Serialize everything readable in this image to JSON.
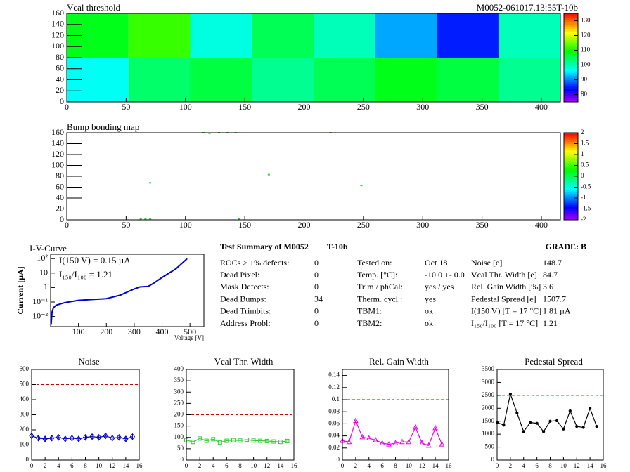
{
  "chart_data": [
    {
      "type": "heatmap",
      "title": "Vcal threshold",
      "annotation": "M0052-061017.13:55T-10b",
      "x_edges": [
        0,
        52,
        104,
        156,
        208,
        260,
        312,
        364,
        416
      ],
      "y_edges": [
        0,
        80,
        160
      ],
      "z": [
        [
          97,
          104,
          106,
          102,
          105,
          108,
          106,
          102
        ],
        [
          108,
          112,
          98,
          105,
          100,
          92,
          85,
          100
        ]
      ],
      "xlim": [
        0,
        416
      ],
      "ylim": [
        0,
        160
      ],
      "xticks": [
        0,
        50,
        100,
        150,
        200,
        250,
        300,
        350,
        400
      ],
      "yticks": [
        0,
        20,
        40,
        60,
        80,
        100,
        120,
        140,
        160
      ],
      "zlim": [
        75,
        135
      ],
      "zticks": [
        80,
        90,
        100,
        110,
        120,
        130
      ]
    },
    {
      "type": "scatter",
      "title": "Bump bonding map",
      "color": "#33cc33",
      "x": [
        115,
        120,
        128,
        135,
        142,
        222,
        70,
        170,
        248,
        62,
        66,
        70,
        145
      ],
      "values": [
        160,
        159,
        160,
        160,
        160,
        160,
        68,
        83,
        63,
        2,
        2,
        2,
        2
      ],
      "xlim": [
        0,
        416
      ],
      "ylim": [
        0,
        160
      ],
      "xticks": [
        0,
        50,
        100,
        150,
        200,
        250,
        300,
        350,
        400
      ],
      "yticks": [
        0,
        20,
        40,
        60,
        80,
        100,
        120,
        140,
        160
      ],
      "zlim": [
        -2,
        2
      ],
      "zticks": [
        -2,
        -1.5,
        -1,
        -0.5,
        0,
        0.5,
        1,
        1.5,
        2
      ]
    },
    {
      "type": "line",
      "title": "I-V-Curve",
      "x_label": "Voltage [V]",
      "y_label": "Current [µA]",
      "log_y": true,
      "color": "#0000cc",
      "annotations": [
        "I(150 V) = 0.15 µA",
        "I₁₅₀/I₁₀₀ =  1.21"
      ],
      "x": [
        2,
        5,
        10,
        20,
        50,
        100,
        150,
        200,
        250,
        300,
        320,
        350,
        370,
        400,
        450,
        490
      ],
      "values": [
        0.003,
        0.02,
        0.04,
        0.06,
        0.09,
        0.13,
        0.15,
        0.17,
        0.3,
        0.8,
        1.1,
        1.2,
        2,
        5,
        20,
        100
      ],
      "xlim": [
        0,
        550
      ],
      "ylim": [
        0.002,
        200
      ],
      "xticks": [
        100,
        200,
        300,
        400,
        500
      ],
      "yticks": [
        {
          "value": 0.01,
          "label": "10⁻²"
        },
        {
          "value": 0.1,
          "label": "10⁻¹"
        },
        1,
        10,
        {
          "value": 100,
          "label": "10²"
        }
      ]
    },
    {
      "type": "line",
      "title": "Noise",
      "color": "#0000cc",
      "marker": "diamond",
      "threshold": 500,
      "x": [
        0,
        1,
        2,
        3,
        4,
        5,
        6,
        7,
        8,
        9,
        10,
        11,
        12,
        13,
        14,
        15
      ],
      "values": [
        160,
        145,
        140,
        145,
        150,
        140,
        145,
        140,
        150,
        155,
        150,
        160,
        145,
        150,
        140,
        155
      ],
      "errors": [
        15,
        15,
        15,
        15,
        15,
        15,
        15,
        15,
        15,
        15,
        15,
        15,
        15,
        15,
        15,
        15
      ],
      "xlim": [
        0,
        16
      ],
      "ylim": [
        0,
        600
      ],
      "xticks": [
        0,
        2,
        4,
        6,
        8,
        10,
        12,
        14,
        16
      ],
      "yticks": [
        0,
        100,
        200,
        300,
        400,
        500,
        600
      ]
    },
    {
      "type": "line",
      "title": "Vcal Thr. Width",
      "color": "#33cc33",
      "marker": "square",
      "threshold": 200,
      "x": [
        0,
        1,
        2,
        3,
        4,
        5,
        6,
        7,
        8,
        9,
        10,
        11,
        12,
        13,
        14,
        15
      ],
      "values": [
        88,
        80,
        95,
        85,
        92,
        78,
        85,
        88,
        86,
        90,
        86,
        85,
        84,
        82,
        80,
        84
      ],
      "xlim": [
        0,
        16
      ],
      "ylim": [
        0,
        400
      ],
      "xticks": [
        0,
        2,
        4,
        6,
        8,
        10,
        12,
        14,
        16
      ],
      "yticks": [
        0,
        50,
        100,
        150,
        200,
        250,
        300,
        350,
        400
      ]
    },
    {
      "type": "line",
      "title": "Rel. Gain Width",
      "color": "#e600e6",
      "marker": "triangle",
      "threshold": 0.1,
      "x": [
        0,
        1,
        2,
        3,
        4,
        5,
        6,
        7,
        8,
        9,
        10,
        11,
        12,
        13,
        14,
        15
      ],
      "values": [
        0.032,
        0.03,
        0.065,
        0.038,
        0.036,
        0.033,
        0.028,
        0.026,
        0.028,
        0.03,
        0.03,
        0.054,
        0.028,
        0.024,
        0.053,
        0.026
      ],
      "xlim": [
        0,
        16
      ],
      "ylim": [
        0,
        0.15
      ],
      "xticks": [
        0,
        2,
        4,
        6,
        8,
        10,
        12,
        14,
        16
      ],
      "yticks": [
        0,
        0.02,
        0.04,
        0.06,
        0.08,
        0.1,
        0.12,
        0.14
      ]
    },
    {
      "type": "line",
      "title": "Pedestal Spread",
      "color": "#000000",
      "marker": "dot",
      "threshold": 2500,
      "x": [
        0,
        1,
        2,
        3,
        4,
        5,
        6,
        7,
        8,
        9,
        10,
        11,
        12,
        13,
        14,
        15
      ],
      "values": [
        1450,
        1350,
        2550,
        1820,
        1100,
        1450,
        1420,
        1100,
        1500,
        1520,
        1200,
        1900,
        1300,
        1260,
        2000,
        1300
      ],
      "xlim": [
        0,
        16
      ],
      "ylim": [
        0,
        3500
      ],
      "xticks": [
        0,
        2,
        4,
        6,
        8,
        10,
        12,
        14,
        16
      ],
      "yticks": [
        0,
        500,
        1000,
        1500,
        2000,
        2500,
        3000,
        3500
      ]
    }
  ],
  "summary": {
    "title": "Test Summary of M0052",
    "test": "T-10b",
    "grade": "GRADE:  B",
    "columns": [
      [
        [
          "ROCs > 1% defects:",
          "0"
        ],
        [
          "Dead Pixel:",
          "0"
        ],
        [
          "Mask Defects:",
          "0"
        ],
        [
          "Dead Bumps:",
          "34"
        ],
        [
          "Dead Trimbits:",
          "0"
        ],
        [
          "Address Probl:",
          "0"
        ]
      ],
      [
        [
          "Tested on:",
          "Oct 18"
        ],
        [
          "Temp. [°C]:",
          "-10.0 +- 0.0"
        ],
        [
          "Trim / phCal:",
          "yes / yes"
        ],
        [
          "Therm. cycl.:",
          "yes"
        ],
        [
          "TBM1:",
          "ok"
        ],
        [
          "TBM2:",
          "ok"
        ]
      ],
      [
        [
          "Noise [e]",
          "148.7"
        ],
        [
          "Vcal Thr. Width [e]",
          "84.7"
        ],
        [
          "Rel. Gain Width [%]",
          "3.6"
        ],
        [
          "Pedestal Spread [e]",
          "1507.7"
        ],
        [
          "I(150 V) [T = 17 °C]",
          "1.81 µA"
        ],
        [
          "I₁₅₀/I₁₀₀  [T = 17 °C]",
          "1.21"
        ]
      ]
    ]
  }
}
